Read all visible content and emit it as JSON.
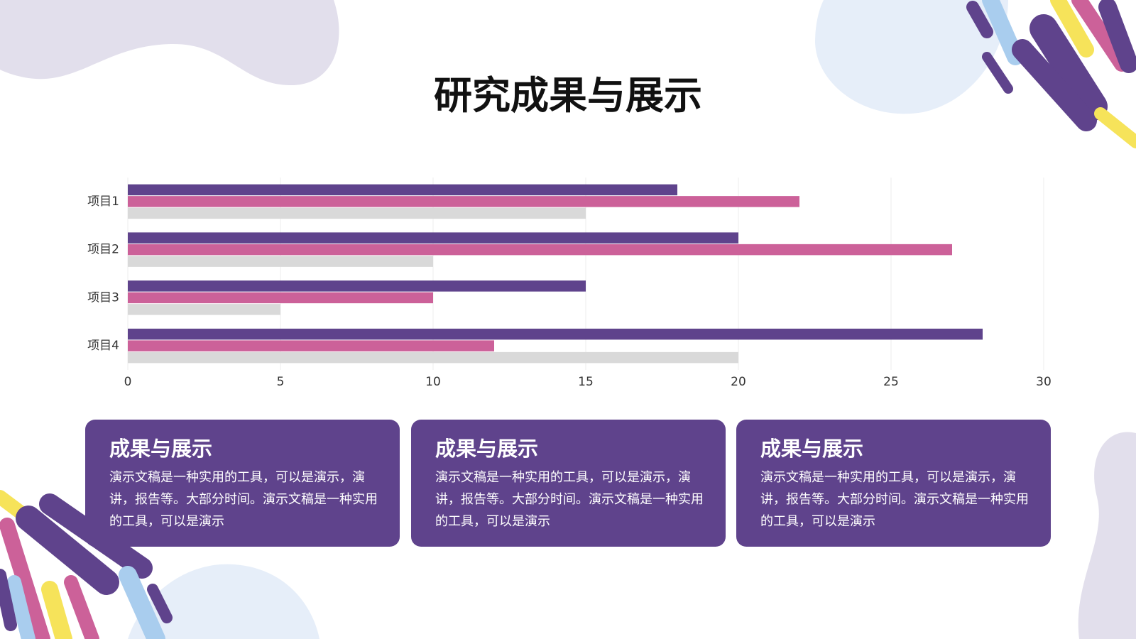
{
  "title": "研究成果与展示",
  "chart_data": {
    "type": "hbar",
    "categories": [
      "项目1",
      "项目2",
      "项目3",
      "项目4"
    ],
    "series": [
      {
        "color": "#5f438c",
        "values": [
          18,
          20,
          15,
          28
        ]
      },
      {
        "color": "#cc6199",
        "values": [
          22,
          27,
          10,
          12
        ]
      },
      {
        "color": "#d9d9d9",
        "values": [
          15,
          10,
          5,
          20
        ]
      }
    ],
    "xlim": [
      0,
      30
    ],
    "xticks": [
      0,
      5,
      10,
      15,
      20,
      25,
      30
    ],
    "grid": true
  },
  "cards": [
    {
      "title": "成果与展示",
      "body": "演示文稿是一种实用的工具，可以是演示，演讲，报告等。大部分时间。演示文稿是一种实用的工具，可以是演示"
    },
    {
      "title": "成果与展示",
      "body": "演示文稿是一种实用的工具，可以是演示，演讲，报告等。大部分时间。演示文稿是一种实用的工具，可以是演示"
    },
    {
      "title": "成果与展示",
      "body": "演示文稿是一种实用的工具，可以是演示，演讲，报告等。大部分时间。演示文稿是一种实用的工具，可以是演示"
    }
  ]
}
